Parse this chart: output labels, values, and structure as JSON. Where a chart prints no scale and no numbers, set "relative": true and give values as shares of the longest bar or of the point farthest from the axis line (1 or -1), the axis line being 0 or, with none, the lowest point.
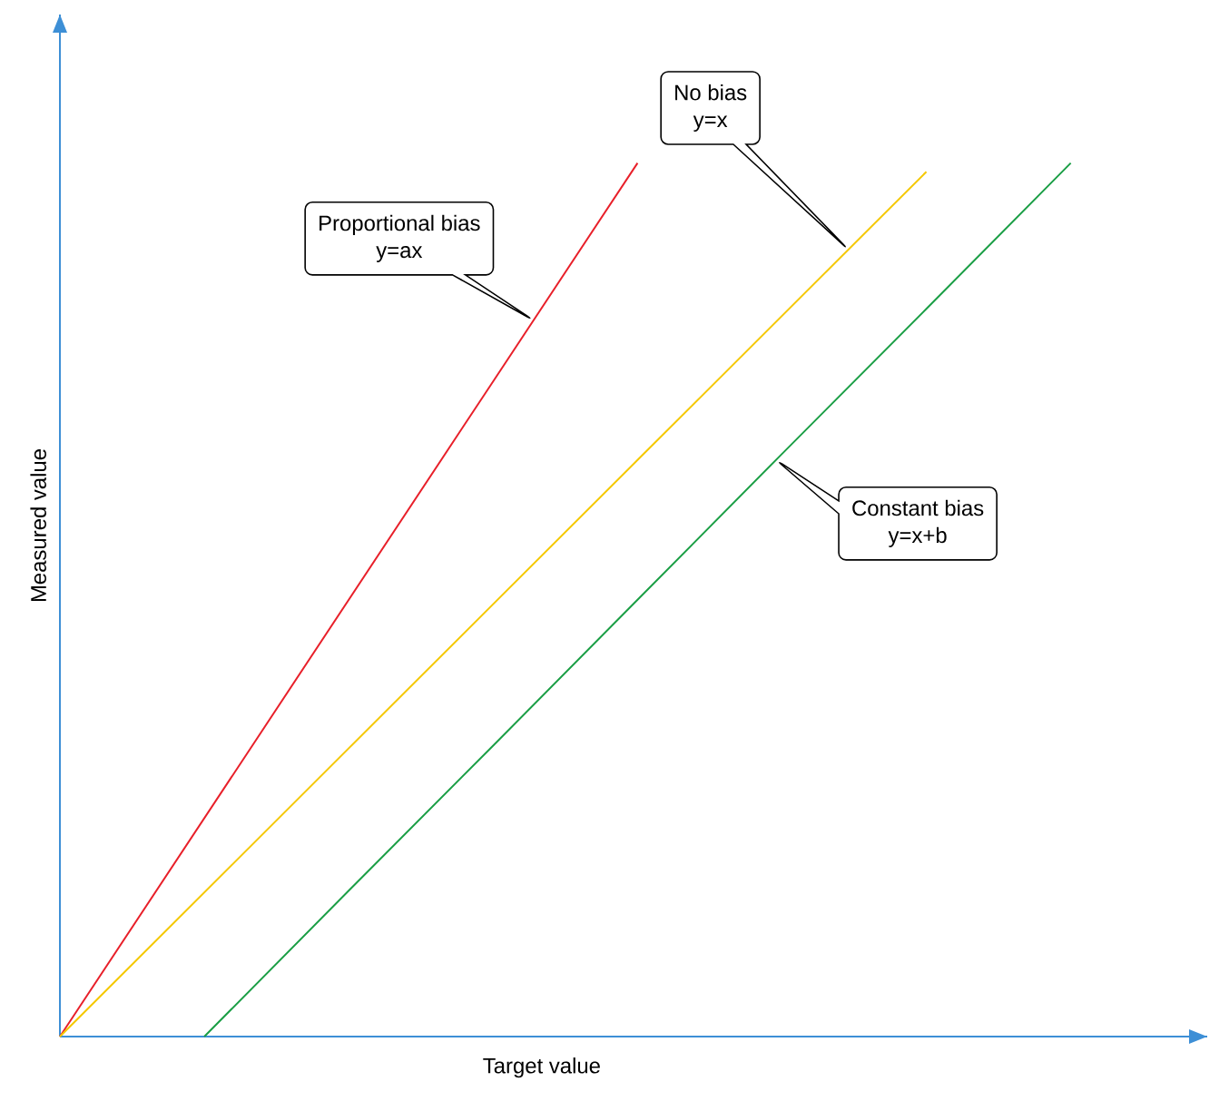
{
  "chart_data": {
    "type": "line",
    "relative": true,
    "xlabel": "Target value",
    "ylabel": "Measured value",
    "categories": [
      null,
      null,
      null,
      null,
      null,
      null,
      null,
      null
    ],
    "series": [
      {
        "color": "#e8202a",
        "values": [
          0,
          0.25,
          0.5,
          0.75,
          1.0,
          null,
          null,
          null
        ]
      },
      {
        "color": "#f5c800",
        "values": [
          0,
          0.165,
          0.33,
          0.495,
          0.66,
          0.825,
          0.99,
          null
        ]
      },
      {
        "color": "#1a9e45",
        "values": [
          null,
          0,
          0.167,
          0.333,
          0.5,
          0.667,
          0.833,
          1.0
        ]
      }
    ],
    "annotations": [
      "Proportional bias",
      "y=ax",
      "No bias",
      "y=x",
      "Constant bias",
      "y=x+b"
    ]
  }
}
